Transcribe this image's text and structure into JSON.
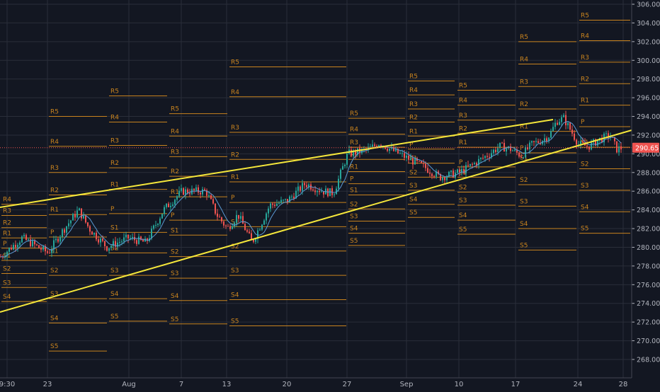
{
  "chart_data": {
    "type": "candlestick",
    "symbol_color_up": "#26a69a",
    "symbol_color_down": "#ef5350",
    "pivot_color": "#c8831e",
    "trendline_color": "#f5e73b",
    "ma_color": "#5b9bd5",
    "ylim": [
      266.5,
      306.5
    ],
    "y_ticks": [
      "268.00",
      "270.00",
      "272.00",
      "274.00",
      "276.00",
      "278.00",
      "280.00",
      "282.00",
      "284.00",
      "286.00",
      "288.00",
      "290.00",
      "292.00",
      "294.00",
      "296.00",
      "298.00",
      "300.00",
      "302.00",
      "304.00",
      "306.00"
    ],
    "x_ticks": [
      "9:30",
      "23",
      "Aug",
      "7",
      "13",
      "20",
      "27",
      "Sep",
      "10",
      "17",
      "24",
      "28"
    ],
    "last_price": "290.65",
    "grid": true,
    "pivot_sets": [
      {
        "levels": {
          "R4": 284.6,
          "R3": 283.4,
          "R2": 282.1,
          "R1": 281.0,
          "P": 279.9,
          "S1": 278.6,
          "S2": 277.2,
          "S3": 275.7,
          "S4": 274.2
        }
      },
      {
        "levels": {
          "R5": 294.0,
          "R4": 290.8,
          "R3": 288.0,
          "R2": 285.6,
          "R1": 283.5,
          "P": 281.1,
          "S1": 279.1,
          "S2": 277.0,
          "S3": 274.5,
          "S4": 271.9,
          "S5": 268.9
        }
      },
      {
        "levels": {
          "R5": 296.2,
          "R4": 293.4,
          "R3": 290.9,
          "R2": 288.5,
          "R1": 286.2,
          "P": 283.6,
          "S1": 281.6,
          "S2": 279.4,
          "S3": 277.0,
          "S4": 274.5,
          "S5": 272.1
        }
      },
      {
        "levels": {
          "R5": 294.3,
          "R4": 291.9,
          "R3": 289.7,
          "R2": 287.6,
          "R1": 285.4,
          "P": 282.9,
          "S1": 281.3,
          "S2": 279.0,
          "S3": 276.7,
          "S4": 274.3,
          "S5": 271.8
        }
      },
      {
        "levels": {
          "R5": 299.3,
          "R4": 296.1,
          "R3": 292.3,
          "R2": 289.4,
          "R1": 287.0,
          "P": 284.8,
          "S1": 282.2,
          "S2": 279.6,
          "S3": 277.0,
          "S4": 274.4,
          "S5": 271.6
        }
      },
      {
        "levels": {
          "R5": 293.8,
          "R4": 292.1,
          "R3": 290.7,
          "R2": 289.4,
          "R1": 288.1,
          "P": 286.8,
          "S1": 285.6,
          "S2": 284.1,
          "S3": 282.8,
          "S4": 281.5,
          "S5": 280.2
        }
      },
      {
        "levels": {
          "R5": 297.8,
          "R4": 296.3,
          "R3": 294.8,
          "R2": 293.4,
          "R1": 291.9,
          "P": 290.5,
          "S1": 289.0,
          "S2": 287.5,
          "S3": 286.1,
          "S4": 284.6,
          "S5": 283.2
        }
      },
      {
        "levels": {
          "R5": 296.8,
          "R4": 295.2,
          "R3": 293.6,
          "R2": 292.2,
          "R1": 290.7,
          "P": 288.6,
          "S1": 287.5,
          "S2": 285.9,
          "S3": 284.5,
          "S4": 282.9,
          "S5": 281.4
        }
      },
      {
        "levels": {
          "R5": 302.0,
          "R4": 299.6,
          "R3": 297.2,
          "R2": 294.8,
          "R1": 292.4,
          "P": 290.1,
          "S1": 289.1,
          "S2": 286.7,
          "S3": 284.4,
          "S4": 282.0,
          "S5": 279.7
        }
      },
      {
        "levels": {
          "R5": 304.3,
          "R4": 302.1,
          "R3": 299.8,
          "R2": 297.5,
          "R1": 295.2,
          "P": 292.9,
          "S1": 290.7,
          "S2": 288.4,
          "S3": 286.1,
          "S4": 283.8,
          "S5": 281.5
        }
      }
    ]
  }
}
